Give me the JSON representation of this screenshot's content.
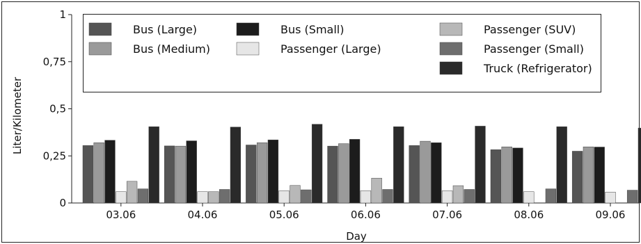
{
  "chart_data": {
    "type": "bar",
    "title": "",
    "xlabel": "Day",
    "ylabel": "Liter/Kilometer",
    "ylim": [
      0,
      1
    ],
    "yticks": [
      0,
      0.25,
      0.5,
      0.75,
      1
    ],
    "ytick_labels": [
      "0",
      "0,25",
      "0,5",
      "0,75",
      "1"
    ],
    "grid": false,
    "legend_position": "top",
    "categories": [
      "03.06",
      "04.06",
      "05.06",
      "06.06",
      "07.06",
      "08.06",
      "09.06"
    ],
    "series": [
      {
        "name": "Bus (Large)",
        "color": "#555555",
        "values": [
          0.305,
          0.303,
          0.308,
          0.302,
          0.305,
          0.283,
          0.275
        ]
      },
      {
        "name": "Bus (Medium)",
        "color": "#9a9a9a",
        "values": [
          0.32,
          0.302,
          0.32,
          0.315,
          0.328,
          0.298,
          0.298
        ]
      },
      {
        "name": "Bus (Small)",
        "color": "#1c1c1c",
        "values": [
          0.333,
          0.33,
          0.335,
          0.338,
          0.32,
          0.292,
          0.297
        ]
      },
      {
        "name": "Passenger (Large)",
        "color": "#e6e6e6",
        "values": [
          0.06,
          0.06,
          0.065,
          0.065,
          0.065,
          0.06,
          0.058
        ]
      },
      {
        "name": "Passenger (SUV)",
        "color": "#b8b8b8",
        "values": [
          0.115,
          0.06,
          0.093,
          0.132,
          0.092,
          0,
          0
        ]
      },
      {
        "name": "Passenger (Small)",
        "color": "#6e6e6e",
        "values": [
          0.075,
          0.072,
          0.07,
          0.072,
          0.072,
          0.075,
          0.068
        ]
      },
      {
        "name": "Truck (Refrigerator)",
        "color": "#2a2a2a",
        "values": [
          0.405,
          0.403,
          0.418,
          0.405,
          0.408,
          0.405,
          0.398
        ]
      }
    ]
  }
}
